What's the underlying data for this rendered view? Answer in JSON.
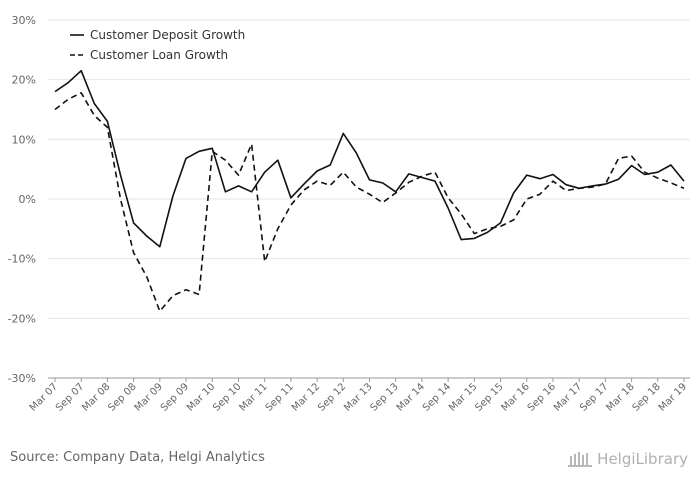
{
  "source_text": "Source: Company Data, Helgi Analytics",
  "brand": {
    "name": "HelgiLibrary",
    "icon": "library-building-icon"
  },
  "colors": {
    "line": "#111111",
    "grid": "#e6e6e6",
    "axis": "#999999",
    "text": "#666666"
  },
  "chart_data": {
    "type": "line",
    "title": "",
    "xlabel": "",
    "ylabel": "",
    "ylim": [
      -30,
      30
    ],
    "y_ticks": [
      "30%",
      "20%",
      "10%",
      "0%",
      "-10%",
      "-20%",
      "-30%"
    ],
    "y_tick_values": [
      30,
      20,
      10,
      0,
      -10,
      -20,
      -30
    ],
    "grid": true,
    "legend_position": "top-left",
    "x": [
      "Mar 07",
      "Jun 07",
      "Sep 07",
      "Dec 07",
      "Mar 08",
      "Jun 08",
      "Sep 08",
      "Dec 08",
      "Mar 09",
      "Jun 09",
      "Sep 09",
      "Dec 09",
      "Mar 10",
      "Jun 10",
      "Sep 10",
      "Dec 10",
      "Mar 11",
      "Jun 11",
      "Sep 11",
      "Dec 11",
      "Mar 12",
      "Jun 12",
      "Sep 12",
      "Dec 12",
      "Mar 13",
      "Jun 13",
      "Sep 13",
      "Dec 13",
      "Mar 14",
      "Jun 14",
      "Sep 14",
      "Dec 14",
      "Mar 15",
      "Jun 15",
      "Sep 15",
      "Dec 15",
      "Mar 16",
      "Jun 16",
      "Sep 16",
      "Dec 16",
      "Mar 17",
      "Jun 17",
      "Sep 17",
      "Dec 17",
      "Mar 18",
      "Jun 18",
      "Sep 18",
      "Dec 18",
      "Mar 19"
    ],
    "x_tick_labels": [
      "Mar 07",
      "Sep 07",
      "Mar 08",
      "Sep 08",
      "Mar 09",
      "Sep 09",
      "Mar 10",
      "Sep 10",
      "Mar 11",
      "Sep 11",
      "Mar 12",
      "Sep 12",
      "Mar 13",
      "Sep 13",
      "Mar 14",
      "Sep 14",
      "Mar 15",
      "Sep 15",
      "Mar 16",
      "Sep 16",
      "Mar 17",
      "Sep 17",
      "Mar 18",
      "Sep 18",
      "Mar 19"
    ],
    "series": [
      {
        "name": "Customer Deposit Growth",
        "style": "solid",
        "values": [
          18.0,
          19.5,
          21.5,
          16.0,
          13.0,
          4.0,
          -4.0,
          -6.2,
          -8.0,
          0.5,
          6.8,
          8.0,
          8.5,
          1.2,
          2.2,
          1.2,
          4.5,
          6.5,
          0.2,
          2.5,
          4.7,
          5.7,
          11.0,
          7.7,
          3.2,
          2.7,
          1.2,
          4.2,
          3.6,
          3.0,
          -1.5,
          -6.8,
          -6.6,
          -5.6,
          -4.0,
          1.0,
          4.0,
          3.4,
          4.1,
          2.4,
          1.8,
          2.2,
          2.5,
          3.3,
          5.6,
          4.1,
          4.5,
          5.7,
          3.0
        ]
      },
      {
        "name": "Customer Loan Growth",
        "style": "dashed",
        "values": [
          15.0,
          16.7,
          17.8,
          14.0,
          12.0,
          0.0,
          -9.0,
          -13.0,
          -18.8,
          -16.2,
          -15.2,
          -16.0,
          8.0,
          6.5,
          4.0,
          9.2,
          -10.5,
          -5.0,
          -1.0,
          1.5,
          3.0,
          2.3,
          4.5,
          2.0,
          0.8,
          -0.6,
          1.0,
          2.8,
          3.8,
          4.5,
          0.2,
          -2.5,
          -5.8,
          -5.0,
          -4.6,
          -3.5,
          0.0,
          0.8,
          3.0,
          1.4,
          1.8,
          2.0,
          2.5,
          6.8,
          7.2,
          4.5,
          3.5,
          2.7,
          1.8
        ]
      }
    ]
  }
}
